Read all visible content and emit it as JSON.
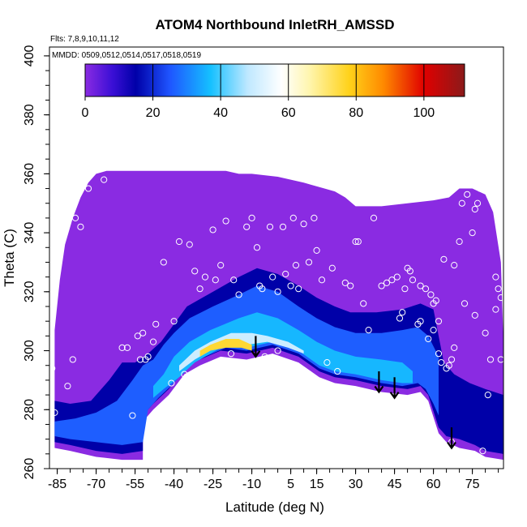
{
  "header": {
    "title": "ATOM4 Northbound InletRH_AMSSD",
    "flights_note": "Flts: 7,8,9,10,11,12",
    "dates_note": "MMDD: 0509,0512,0514,0517,0518,0519"
  },
  "chart_data": {
    "type": "heatmap",
    "title": "ATOM4 Northbound InletRH_AMSSD",
    "xlabel": "Latitude (deg N)",
    "ylabel": "Theta (C)",
    "xlim": [
      -88,
      87
    ],
    "ylim": [
      260,
      403
    ],
    "x_ticks": [
      -85,
      -70,
      -55,
      -40,
      -25,
      -10,
      5,
      15,
      30,
      45,
      60,
      75
    ],
    "y_ticks": [
      260,
      280,
      300,
      320,
      340,
      360,
      380,
      400
    ],
    "grid": false,
    "colorbar": {
      "range": [
        0,
        112
      ],
      "ticks": [
        0,
        20,
        40,
        60,
        80,
        100
      ],
      "stops": [
        {
          "v": 0,
          "color": "#8a2be2"
        },
        {
          "v": 8,
          "color": "#3b0fd6"
        },
        {
          "v": 15,
          "color": "#0000a8"
        },
        {
          "v": 25,
          "color": "#1f55ff"
        },
        {
          "v": 37,
          "color": "#15c0ff"
        },
        {
          "v": 48,
          "color": "#bfe8ff"
        },
        {
          "v": 58,
          "color": "#ffffff"
        },
        {
          "v": 66,
          "color": "#fff6b0"
        },
        {
          "v": 78,
          "color": "#ffd21a"
        },
        {
          "v": 88,
          "color": "#ff8a00"
        },
        {
          "v": 100,
          "color": "#e00000"
        },
        {
          "v": 112,
          "color": "#8b1a1a"
        }
      ]
    },
    "field_upper_boundary": [
      [
        -86,
        307
      ],
      [
        -84,
        324
      ],
      [
        -82,
        336
      ],
      [
        -79,
        345
      ],
      [
        -76,
        352
      ],
      [
        -73,
        357
      ],
      [
        -70,
        360
      ],
      [
        -66,
        361
      ],
      [
        -60,
        361
      ],
      [
        -45,
        361
      ],
      [
        -30,
        361
      ],
      [
        -20,
        361
      ],
      [
        -15,
        360
      ],
      [
        -10,
        360
      ],
      [
        0,
        359
      ],
      [
        10,
        357
      ],
      [
        18,
        355
      ],
      [
        22,
        354
      ],
      [
        26,
        352
      ],
      [
        30,
        349
      ],
      [
        40,
        349
      ],
      [
        50,
        350
      ],
      [
        60,
        351
      ],
      [
        66,
        352
      ],
      [
        70,
        355
      ],
      [
        75,
        355
      ],
      [
        80,
        353
      ],
      [
        83,
        347
      ],
      [
        86,
        330
      ],
      [
        87,
        302
      ]
    ],
    "field_lower_boundary": [
      [
        -86,
        267
      ],
      [
        -80,
        266
      ],
      [
        -70,
        264
      ],
      [
        -60,
        263
      ],
      [
        -52,
        263
      ],
      [
        -52,
        276
      ],
      [
        -48,
        280
      ],
      [
        -42,
        285
      ],
      [
        -36,
        292
      ],
      [
        -30,
        295
      ],
      [
        -22,
        298
      ],
      [
        -12,
        297
      ],
      [
        -2,
        299
      ],
      [
        8,
        296
      ],
      [
        16,
        291
      ],
      [
        22,
        289
      ],
      [
        30,
        288
      ],
      [
        40,
        286
      ],
      [
        50,
        285
      ],
      [
        55,
        286
      ],
      [
        58,
        283
      ],
      [
        62,
        272
      ],
      [
        65,
        269
      ],
      [
        70,
        267
      ],
      [
        76,
        266
      ],
      [
        80,
        264
      ],
      [
        87,
        263
      ]
    ],
    "bands": [
      {
        "value": 15,
        "lower": [
          [
            -86,
            269
          ],
          [
            -80,
            268
          ],
          [
            -70,
            266
          ],
          [
            -60,
            265
          ],
          [
            -52,
            266
          ],
          [
            -52,
            278
          ],
          [
            -48,
            282
          ],
          [
            -42,
            287
          ],
          [
            -36,
            294
          ],
          [
            -30,
            297
          ],
          [
            -22,
            300
          ],
          [
            -12,
            299
          ],
          [
            -2,
            301
          ],
          [
            8,
            298
          ],
          [
            16,
            293
          ],
          [
            22,
            291
          ],
          [
            30,
            290
          ],
          [
            40,
            288
          ],
          [
            50,
            287
          ],
          [
            55,
            288
          ],
          [
            58,
            285
          ],
          [
            62,
            274
          ],
          [
            65,
            271
          ],
          [
            70,
            270
          ],
          [
            76,
            268
          ],
          [
            80,
            266
          ],
          [
            87,
            265
          ]
        ],
        "upper": [
          [
            -86,
            283
          ],
          [
            -80,
            282
          ],
          [
            -72,
            283
          ],
          [
            -65,
            290
          ],
          [
            -60,
            296
          ],
          [
            -55,
            296
          ],
          [
            -50,
            299
          ],
          [
            -45,
            303
          ],
          [
            -40,
            309
          ],
          [
            -35,
            315
          ],
          [
            -25,
            320
          ],
          [
            -15,
            325
          ],
          [
            -8,
            328
          ],
          [
            0,
            326
          ],
          [
            8,
            322
          ],
          [
            15,
            318
          ],
          [
            22,
            315
          ],
          [
            28,
            313
          ],
          [
            38,
            313
          ],
          [
            48,
            314
          ],
          [
            55,
            316
          ],
          [
            60,
            314
          ],
          [
            62,
            305
          ],
          [
            64,
            296
          ],
          [
            68,
            292
          ],
          [
            74,
            289
          ],
          [
            80,
            287
          ],
          [
            87,
            285
          ]
        ]
      },
      {
        "value": 26,
        "lower": [
          [
            -86,
            271
          ],
          [
            -80,
            270
          ],
          [
            -70,
            269
          ],
          [
            -60,
            268
          ],
          [
            -52,
            269
          ],
          [
            -50,
            280
          ],
          [
            -46,
            284
          ],
          [
            -40,
            289
          ],
          [
            -34,
            295
          ],
          [
            -28,
            298
          ],
          [
            -20,
            301
          ],
          [
            -12,
            300
          ],
          [
            -2,
            302
          ],
          [
            8,
            299
          ],
          [
            16,
            294
          ],
          [
            22,
            292
          ],
          [
            30,
            291
          ],
          [
            40,
            289
          ],
          [
            48,
            288
          ],
          [
            54,
            289
          ],
          [
            57,
            287
          ],
          [
            60,
            282
          ],
          [
            62,
            278
          ]
        ],
        "upper": [
          [
            -86,
            276
          ],
          [
            -78,
            277
          ],
          [
            -70,
            279
          ],
          [
            -62,
            283
          ],
          [
            -56,
            290
          ],
          [
            -52,
            295
          ],
          [
            -48,
            297
          ],
          [
            -44,
            302
          ],
          [
            -40,
            306
          ],
          [
            -34,
            311
          ],
          [
            -25,
            315
          ],
          [
            -15,
            319
          ],
          [
            -8,
            322
          ],
          [
            0,
            320
          ],
          [
            8,
            315
          ],
          [
            15,
            311
          ],
          [
            22,
            308
          ],
          [
            30,
            306
          ],
          [
            40,
            306
          ],
          [
            48,
            307
          ],
          [
            54,
            308
          ],
          [
            58,
            305
          ],
          [
            62,
            298
          ],
          [
            62,
            278
          ]
        ]
      },
      {
        "value": 36,
        "lower": [
          [
            -48,
            284
          ],
          [
            -44,
            287
          ],
          [
            -38,
            291
          ],
          [
            -32,
            296
          ],
          [
            -26,
            299
          ],
          [
            -20,
            302
          ],
          [
            -12,
            301
          ],
          [
            -2,
            303
          ],
          [
            8,
            300
          ],
          [
            16,
            295
          ],
          [
            22,
            293
          ],
          [
            30,
            292
          ],
          [
            40,
            290
          ],
          [
            48,
            289
          ],
          [
            52,
            289
          ]
        ],
        "upper": [
          [
            -48,
            288
          ],
          [
            -44,
            292
          ],
          [
            -40,
            298
          ],
          [
            -34,
            303
          ],
          [
            -26,
            307
          ],
          [
            -15,
            311
          ],
          [
            -8,
            313
          ],
          [
            0,
            311
          ],
          [
            8,
            307
          ],
          [
            15,
            303
          ],
          [
            22,
            300
          ],
          [
            30,
            298
          ],
          [
            40,
            297
          ],
          [
            48,
            296
          ],
          [
            52,
            293
          ]
        ]
      },
      {
        "value": 50,
        "lower": [
          [
            -38,
            293
          ],
          [
            -32,
            297
          ],
          [
            -26,
            300
          ],
          [
            -20,
            302
          ],
          [
            -12,
            302
          ],
          [
            -4,
            303
          ],
          [
            4,
            301
          ],
          [
            10,
            299
          ]
        ],
        "upper": [
          [
            -38,
            295
          ],
          [
            -32,
            300
          ],
          [
            -26,
            303
          ],
          [
            -18,
            306
          ],
          [
            -10,
            306
          ],
          [
            -4,
            305
          ],
          [
            4,
            303
          ],
          [
            10,
            300
          ]
        ]
      },
      {
        "value": 76,
        "lower": [
          [
            -30,
            298
          ],
          [
            -26,
            300
          ],
          [
            -20,
            301
          ],
          [
            -14,
            301
          ],
          [
            -10,
            300
          ]
        ],
        "upper": [
          [
            -30,
            300
          ],
          [
            -26,
            302
          ],
          [
            -20,
            304
          ],
          [
            -15,
            304
          ],
          [
            -10,
            302
          ]
        ]
      }
    ],
    "observation_points": [
      [
        -87,
        294
      ],
      [
        -86,
        279
      ],
      [
        -85,
        329
      ],
      [
        -84,
        333
      ],
      [
        -81,
        288
      ],
      [
        -79,
        297
      ],
      [
        -78,
        345
      ],
      [
        -76,
        342
      ],
      [
        -73,
        355
      ],
      [
        -67,
        358
      ],
      [
        -60,
        301
      ],
      [
        -58,
        301
      ],
      [
        -56,
        278
      ],
      [
        -54,
        305
      ],
      [
        -53,
        297
      ],
      [
        -52,
        306
      ],
      [
        -51,
        297
      ],
      [
        -50,
        298
      ],
      [
        -48,
        303
      ],
      [
        -47,
        309
      ],
      [
        -44,
        330
      ],
      [
        -41,
        289
      ],
      [
        -40,
        310
      ],
      [
        -38,
        337
      ],
      [
        -36,
        292
      ],
      [
        -34,
        336
      ],
      [
        -32,
        327
      ],
      [
        -30,
        321
      ],
      [
        -28,
        325
      ],
      [
        -25,
        341
      ],
      [
        -24,
        324
      ],
      [
        -22,
        329
      ],
      [
        -20,
        344
      ],
      [
        -18,
        299
      ],
      [
        -17,
        324
      ],
      [
        -15,
        319
      ],
      [
        -12,
        342
      ],
      [
        -10,
        345
      ],
      [
        -8,
        335
      ],
      [
        -7,
        322
      ],
      [
        -6,
        321
      ],
      [
        -5,
        298
      ],
      [
        -3,
        342
      ],
      [
        -2,
        325
      ],
      [
        0,
        300
      ],
      [
        0,
        320
      ],
      [
        2,
        342
      ],
      [
        3,
        326
      ],
      [
        5,
        322
      ],
      [
        6,
        345
      ],
      [
        7,
        329
      ],
      [
        8,
        321
      ],
      [
        10,
        343
      ],
      [
        12,
        330
      ],
      [
        14,
        345
      ],
      [
        15,
        334
      ],
      [
        17,
        324
      ],
      [
        19,
        296
      ],
      [
        21,
        328
      ],
      [
        23,
        293
      ],
      [
        26,
        323
      ],
      [
        28,
        322
      ],
      [
        30,
        337
      ],
      [
        31,
        337
      ],
      [
        33,
        316
      ],
      [
        35,
        307
      ],
      [
        37,
        345
      ],
      [
        40,
        322
      ],
      [
        42,
        323
      ],
      [
        44,
        324
      ],
      [
        46,
        325
      ],
      [
        47,
        311
      ],
      [
        48,
        313
      ],
      [
        49,
        321
      ],
      [
        50,
        328
      ],
      [
        51,
        327
      ],
      [
        52,
        324
      ],
      [
        54,
        309
      ],
      [
        55,
        310
      ],
      [
        55,
        322
      ],
      [
        57,
        321
      ],
      [
        58,
        304
      ],
      [
        59,
        319
      ],
      [
        60,
        316
      ],
      [
        60,
        307
      ],
      [
        61,
        317
      ],
      [
        62,
        299
      ],
      [
        62,
        310
      ],
      [
        63,
        296
      ],
      [
        64,
        331
      ],
      [
        65,
        294
      ],
      [
        66,
        295
      ],
      [
        67,
        297
      ],
      [
        67,
        269
      ],
      [
        68,
        301
      ],
      [
        68,
        329
      ],
      [
        70,
        337
      ],
      [
        71,
        350
      ],
      [
        72,
        316
      ],
      [
        73,
        353
      ],
      [
        74,
        359
      ],
      [
        75,
        340
      ],
      [
        76,
        348
      ],
      [
        76,
        312
      ],
      [
        77,
        350
      ],
      [
        78,
        355
      ],
      [
        79,
        266
      ],
      [
        80,
        306
      ],
      [
        81,
        285
      ],
      [
        82,
        297
      ],
      [
        84,
        314
      ],
      [
        84,
        325
      ],
      [
        85,
        321
      ],
      [
        86,
        297
      ],
      [
        86,
        318
      ]
    ],
    "arrows": [
      {
        "x": -8.5,
        "y_from": 305,
        "y_to": 298
      },
      {
        "x": 39,
        "y_from": 293,
        "y_to": 286
      },
      {
        "x": 45,
        "y_from": 291,
        "y_to": 284
      },
      {
        "x": 67,
        "y_from": 274,
        "y_to": 267
      }
    ]
  }
}
